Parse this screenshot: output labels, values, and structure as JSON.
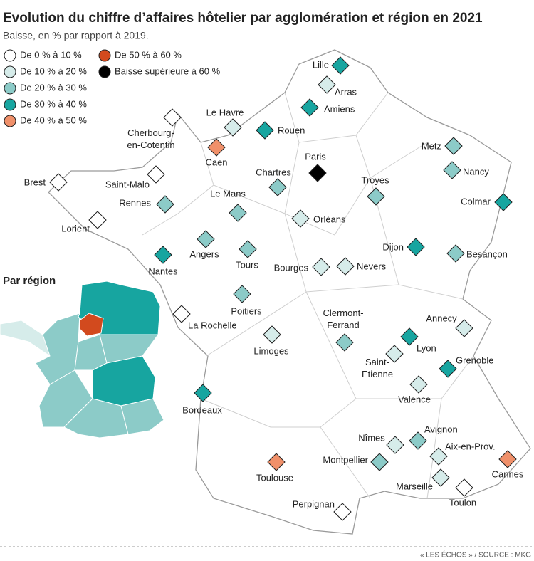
{
  "title": "Evolution du chiffre d’affaires hôtelier par agglomération et région en 2021",
  "subtitle": "Baisse, en % par rapport à 2019.",
  "legend": [
    {
      "label": "De 0 % à 10 %",
      "color": "#ffffff"
    },
    {
      "label": "De 10 % à 20 %",
      "color": "#d6ecea"
    },
    {
      "label": "De 20 % à 30 %",
      "color": "#8ccbc8"
    },
    {
      "label": "De 30 % à 40 %",
      "color": "#17a5a0"
    },
    {
      "label": "De 40 % à 50 %",
      "color": "#f0906a"
    },
    {
      "label": "De 50 % à 60 %",
      "color": "#d24a1e"
    },
    {
      "label": "Baisse supérieure à 60 %",
      "color": "#000000"
    }
  ],
  "cities": [
    {
      "label": "Lille",
      "class": 3
    },
    {
      "label": "Arras",
      "class": 1
    },
    {
      "label": "Amiens",
      "class": 3
    },
    {
      "label": "Le Havre",
      "class": 1
    },
    {
      "label": "Rouen",
      "class": 3
    },
    {
      "label": "Cherbourg-en-Cotentin",
      "class": 0
    },
    {
      "label": "Caen",
      "class": 4
    },
    {
      "label": "Paris",
      "class": 6
    },
    {
      "label": "Metz",
      "class": 2
    },
    {
      "label": "Nancy",
      "class": 2
    },
    {
      "label": "Brest",
      "class": 0
    },
    {
      "label": "Saint-Malo",
      "class": 0
    },
    {
      "label": "Chartres",
      "class": 2
    },
    {
      "label": "Troyes",
      "class": 2
    },
    {
      "label": "Colmar",
      "class": 3
    },
    {
      "label": "Rennes",
      "class": 2
    },
    {
      "label": "Le Mans",
      "class": 2
    },
    {
      "label": "Orléans",
      "class": 1
    },
    {
      "label": "Lorient",
      "class": 0
    },
    {
      "label": "Angers",
      "class": 2
    },
    {
      "label": "Tours",
      "class": 2
    },
    {
      "label": "Dijon",
      "class": 3
    },
    {
      "label": "Besançon",
      "class": 2
    },
    {
      "label": "Nantes",
      "class": 3
    },
    {
      "label": "Bourges",
      "class": 1
    },
    {
      "label": "Nevers",
      "class": 1
    },
    {
      "label": "Poitiers",
      "class": 2
    },
    {
      "label": "La Rochelle",
      "class": 0
    },
    {
      "label": "Clermont-Ferrand",
      "class": 2
    },
    {
      "label": "Annecy",
      "class": 1
    },
    {
      "label": "Limoges",
      "class": 1
    },
    {
      "label": "Lyon",
      "class": 3
    },
    {
      "label": "Saint-Etienne",
      "class": 1
    },
    {
      "label": "Grenoble",
      "class": 3
    },
    {
      "label": "Valence",
      "class": 1
    },
    {
      "label": "Bordeaux",
      "class": 3
    },
    {
      "label": "Nîmes",
      "class": 1
    },
    {
      "label": "Avignon",
      "class": 2
    },
    {
      "label": "Aix-en-Prov.",
      "class": 1
    },
    {
      "label": "Cannes",
      "class": 4
    },
    {
      "label": "Montpellier",
      "class": 2
    },
    {
      "label": "Toulouse",
      "class": 4
    },
    {
      "label": "Marseille",
      "class": 1
    },
    {
      "label": "Toulon",
      "class": 0
    },
    {
      "label": "Perpignan",
      "class": 0
    }
  ],
  "inset_title": "Par région",
  "source": "« LES ÉCHOS » / SOURCE : MKG"
}
